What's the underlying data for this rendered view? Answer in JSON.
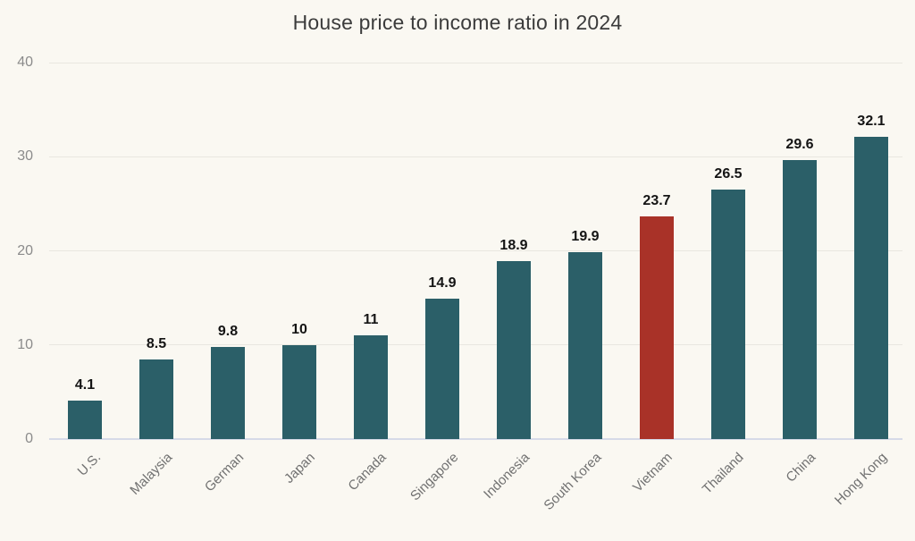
{
  "page": {
    "background_color": "#FAF8F2"
  },
  "chart_data": {
    "type": "bar",
    "title": "House price to income ratio in 2024",
    "categories": [
      "U.S.",
      "Malaysia",
      "German",
      "Japan",
      "Canada",
      "Singapore",
      "Indonesia",
      "South Korea",
      "Vietnam",
      "Thailand",
      "China",
      "Hong Kong"
    ],
    "values": [
      4.1,
      8.5,
      9.8,
      10,
      11,
      14.9,
      18.9,
      19.9,
      23.7,
      26.5,
      29.6,
      32.1
    ],
    "value_labels": [
      "4.1",
      "8.5",
      "9.8",
      "10",
      "11",
      "14.9",
      "18.9",
      "19.9",
      "23.7",
      "26.5",
      "29.6",
      "32.1"
    ],
    "highlight_category": "Vietnam",
    "bar_color": "#2B5F68",
    "highlight_color": "#A93228",
    "yticks": [
      0,
      10,
      20,
      30,
      40
    ],
    "ylim": [
      0,
      40
    ],
    "xlabel": "",
    "ylabel": "",
    "grid": true,
    "legend": false,
    "value_label_color": "#141414",
    "axis_label_color": "#8B8B8B",
    "x_label_color": "#717171"
  }
}
